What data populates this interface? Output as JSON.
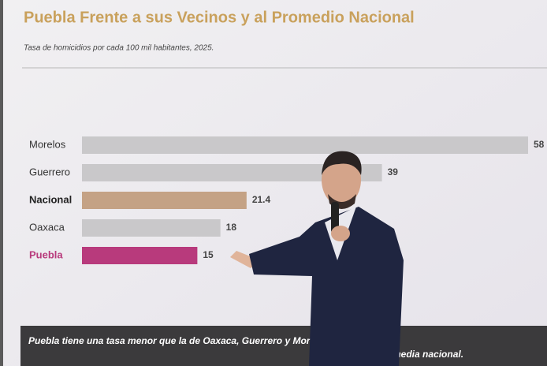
{
  "chart_data": {
    "type": "hbar",
    "title": "Puebla Frente a sus Vecinos y al Promedio Nacional",
    "subtitle": "Tasa de homicidios por cada 100 mil habitantes, 2025.",
    "categories": [
      "Morelos",
      "Guerrero",
      "Nacional",
      "Oaxaca",
      "Puebla"
    ],
    "values": [
      58,
      39,
      21.4,
      18,
      15
    ],
    "colors": [
      "#c9c8ca",
      "#c9c8ca",
      "#c4a285",
      "#c9c8ca",
      "#b83a7c"
    ],
    "note_start": "Puebla tiene una tasa menor que la de Oaxaca, Guerrero y Morelos, y es",
    "note_end": "media nacional."
  }
}
